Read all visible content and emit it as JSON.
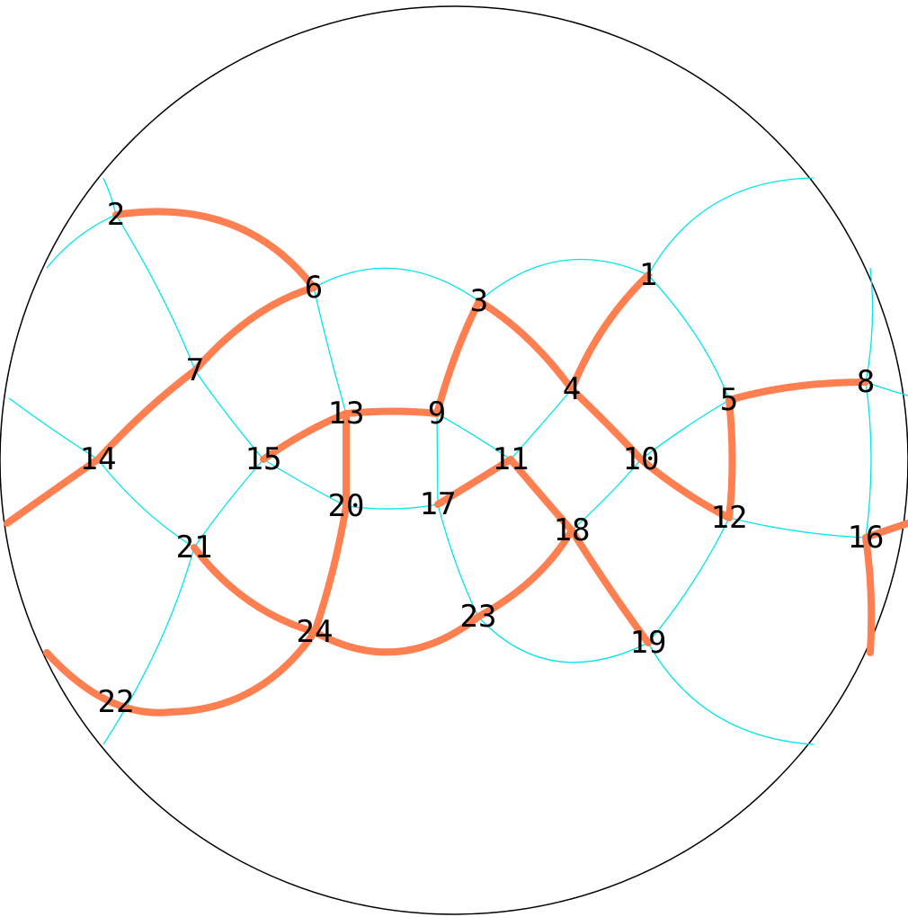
{
  "colors": {
    "boundary": "#000000",
    "thin_edge": "#00e5ee",
    "highlight_edge": "#ff7f50",
    "label": "#000000"
  },
  "nodes": [
    {
      "id": "n1",
      "label": "1"
    },
    {
      "id": "n2",
      "label": "2"
    },
    {
      "id": "n3",
      "label": "3"
    },
    {
      "id": "n4",
      "label": "4"
    },
    {
      "id": "n5",
      "label": "5"
    },
    {
      "id": "n6",
      "label": "6"
    },
    {
      "id": "n7",
      "label": "7"
    },
    {
      "id": "n8",
      "label": "8"
    },
    {
      "id": "n9",
      "label": "9"
    },
    {
      "id": "n10",
      "label": "10"
    },
    {
      "id": "n11",
      "label": "11"
    },
    {
      "id": "n12",
      "label": "12"
    },
    {
      "id": "n13",
      "label": "13"
    },
    {
      "id": "n14",
      "label": "14"
    },
    {
      "id": "n15",
      "label": "15"
    },
    {
      "id": "n16",
      "label": "16"
    },
    {
      "id": "n17",
      "label": "17"
    },
    {
      "id": "n18",
      "label": "18"
    },
    {
      "id": "n19",
      "label": "19"
    },
    {
      "id": "n20",
      "label": "20"
    },
    {
      "id": "n21",
      "label": "21"
    },
    {
      "id": "n22",
      "label": "22"
    },
    {
      "id": "n23",
      "label": "23"
    },
    {
      "id": "n24",
      "label": "24"
    }
  ],
  "highlighted_paths": [
    [
      "2",
      "6"
    ],
    [
      "edge",
      "14",
      "7",
      "6"
    ],
    [
      "14",
      "7"
    ],
    [
      "15",
      "13",
      "9"
    ],
    [
      "13",
      "20",
      "24"
    ],
    [
      "9",
      "3"
    ],
    [
      "3",
      "4",
      "10",
      "12"
    ],
    [
      "1",
      "4"
    ],
    [
      "8",
      "5",
      "12"
    ],
    [
      "17",
      "11",
      "18",
      "19"
    ],
    [
      "21",
      "24",
      "23",
      "18"
    ],
    [
      "22",
      "24"
    ],
    [
      "16",
      "edge"
    ]
  ]
}
